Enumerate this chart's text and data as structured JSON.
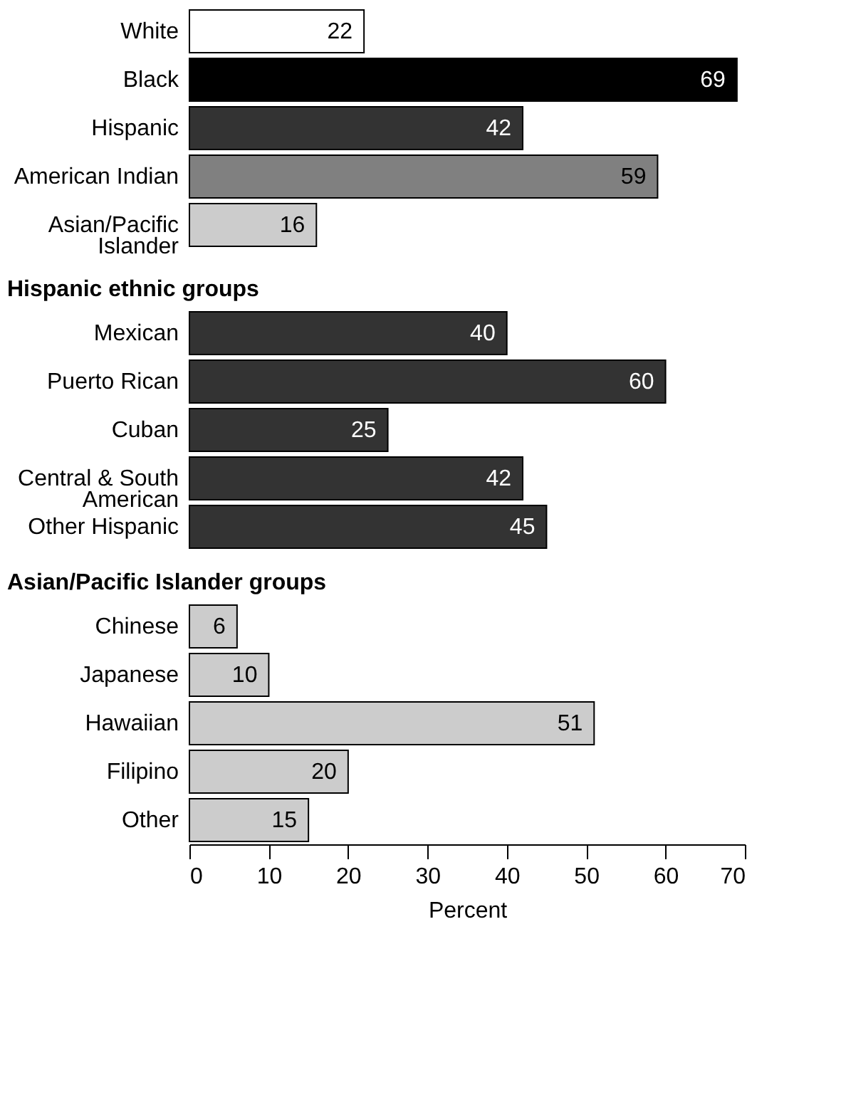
{
  "chart_data": [
    {
      "type": "bar",
      "orientation": "horizontal",
      "categories": [
        "White",
        "Black",
        "Hispanic",
        "American Indian",
        "Asian/Pacific Islander"
      ],
      "values": [
        22,
        69,
        42,
        59,
        16
      ],
      "colors": [
        "#ffffff",
        "#000000",
        "#333333",
        "#808080",
        "#cccccc"
      ],
      "data_labels": true,
      "xlim": [
        0,
        70
      ],
      "tick_labels": "y",
      "grid": false
    },
    {
      "type": "bar",
      "orientation": "horizontal",
      "title": "Hispanic ethnic groups",
      "categories": [
        "Mexican",
        "Puerto Rican",
        "Cuban",
        "Central & South American",
        "Other Hispanic"
      ],
      "values": [
        40,
        60,
        25,
        42,
        45
      ],
      "color": "#333333",
      "data_labels": true,
      "xlim": [
        0,
        70
      ],
      "tick_labels": "y",
      "grid": false
    },
    {
      "type": "bar",
      "orientation": "horizontal",
      "title": "Asian/Pacific Islander groups",
      "categories": [
        "Chinese",
        "Japanese",
        "Hawaiian",
        "Filipino",
        "Other"
      ],
      "values": [
        6,
        10,
        51,
        20,
        15
      ],
      "color": "#cccccc",
      "data_labels": true,
      "xlim": [
        0,
        70
      ],
      "xticks": [
        0,
        10,
        20,
        30,
        40,
        50,
        60,
        70
      ],
      "xlabel": "Percent",
      "grid": false
    }
  ]
}
